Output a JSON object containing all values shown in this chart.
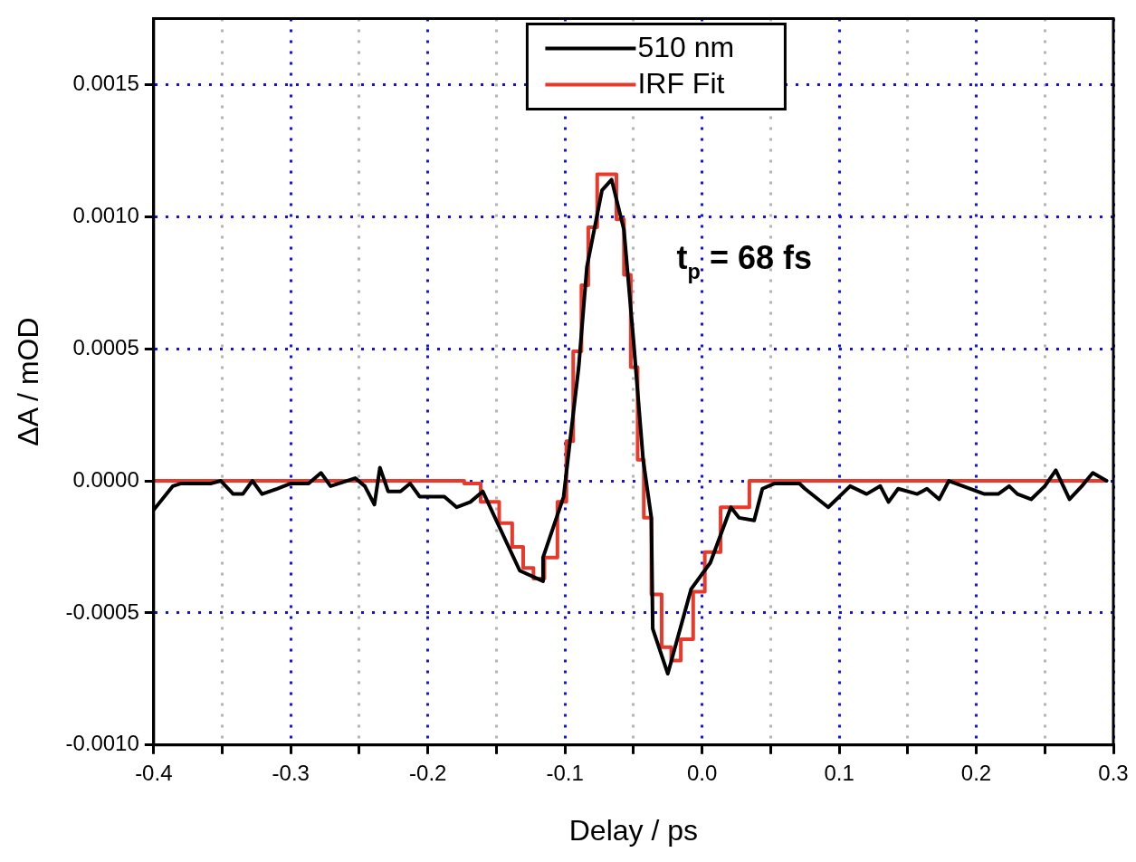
{
  "chart_data": {
    "type": "line",
    "xlabel": "Delay / ps",
    "ylabel": "ΔA / mOD",
    "xlim": [
      -0.4,
      0.3
    ],
    "xticks": [
      -0.4,
      {
        "value": -0.35,
        "label": null
      },
      -0.3,
      {
        "value": -0.25,
        "label": null
      },
      -0.2,
      {
        "value": -0.15,
        "label": null
      },
      -0.1,
      {
        "value": -0.05,
        "label": null
      },
      {
        "value": 0,
        "label": "0.0"
      },
      {
        "value": 0.05,
        "label": null
      },
      0.1,
      {
        "value": 0.15,
        "label": null
      },
      0.2,
      {
        "value": 0.25,
        "label": null
      },
      0.3
    ],
    "ylim": [
      -0.001,
      0.00175
    ],
    "yticks": [
      {
        "value": -0.001,
        "label": "-0.0010"
      },
      {
        "value": -0.0005,
        "label": "-0.0005"
      },
      {
        "value": 0,
        "label": "0.0000"
      },
      {
        "value": 0.0005,
        "label": "0.0005"
      },
      {
        "value": 0.001,
        "label": "0.0010"
      },
      {
        "value": 0.0015,
        "label": "0.0015"
      }
    ],
    "grid": true,
    "legend": "top",
    "marker": "none",
    "line_style": "solid",
    "annotations": [
      "t$_{p}$ = 68 fs"
    ],
    "series": [
      {
        "name": "510 nm",
        "color": "#000000",
        "x": [
          -0.4,
          -0.386,
          -0.38,
          -0.358,
          -0.351,
          -0.342,
          -0.335,
          -0.328,
          -0.321,
          -0.31,
          -0.3,
          -0.287,
          -0.278,
          -0.271,
          -0.253,
          -0.246,
          -0.239,
          -0.235,
          -0.229,
          -0.22,
          -0.213,
          -0.206,
          -0.188,
          -0.179,
          -0.169,
          -0.16,
          -0.133,
          -0.116,
          -0.116,
          -0.101,
          -0.097,
          -0.09,
          -0.084,
          -0.073,
          -0.066,
          -0.057,
          -0.05,
          -0.043,
          -0.037,
          -0.036,
          -0.025,
          -0.008,
          0.006,
          0.021,
          0.027,
          0.038,
          0.044,
          0.053,
          0.071,
          0.075,
          0.092,
          0.108,
          0.12,
          0.13,
          0.136,
          0.143,
          0.157,
          0.164,
          0.173,
          0.18,
          0.206,
          0.216,
          0.224,
          0.23,
          0.24,
          0.25,
          0.258,
          0.268,
          0.277,
          0.285,
          0.295
        ],
        "values": [
          -0.00011,
          -2e-05,
          -1e-05,
          -1e-05,
          0,
          -5e-05,
          -5e-05,
          0,
          -5e-05,
          -3e-05,
          -1e-05,
          -1e-05,
          3e-05,
          -2e-05,
          1e-05,
          -2e-05,
          -9e-05,
          5e-05,
          -4e-05,
          -4e-05,
          -1e-05,
          -6e-05,
          -6e-05,
          -0.0001,
          -8e-05,
          -4e-05,
          -0.00034,
          -0.00038,
          -0.00029,
          -6e-05,
          0.00012,
          0.00043,
          0.00081,
          0.0011,
          0.00114,
          0.00095,
          0.00053,
          8e-05,
          -0.00014,
          -0.00056,
          -0.00073,
          -0.00041,
          -0.00031,
          -0.0001,
          -0.00014,
          -0.00015,
          -3e-05,
          -1e-05,
          -1e-05,
          -3e-05,
          -0.0001,
          -2e-05,
          -5e-05,
          -2e-05,
          -8e-05,
          -3e-05,
          -5e-05,
          -3e-05,
          -7e-05,
          0,
          -5e-05,
          -5e-05,
          -2e-05,
          -5e-05,
          -7e-05,
          -2e-05,
          4e-05,
          -7e-05,
          -2e-05,
          3e-05,
          0
        ]
      },
      {
        "name": "IRF Fit",
        "type": "step",
        "color": "#e8392b",
        "x": [
          -0.4,
          -0.178,
          -0.169,
          -0.154,
          -0.142,
          -0.135,
          -0.126,
          -0.12,
          -0.11,
          -0.101,
          -0.097,
          -0.091,
          -0.085,
          -0.081,
          -0.072,
          -0.066,
          -0.059,
          -0.055,
          -0.049,
          -0.045,
          -0.04,
          -0.034,
          -0.025,
          -0.02,
          -0.011,
          -0.002,
          0.006,
          0.021,
          0.048,
          0.295
        ],
        "values": [
          0,
          0,
          -1e-05,
          -8e-05,
          -0.00016,
          -0.00025,
          -0.00033,
          -0.00037,
          -0.00029,
          -8e-05,
          0.00015,
          0.00049,
          0.00074,
          0.00096,
          0.00116,
          0.00116,
          0.00099,
          0.00078,
          0.00043,
          8e-05,
          -0.00014,
          -0.00043,
          -0.00063,
          -0.00068,
          -0.0006,
          -0.00042,
          -0.00027,
          -0.0001,
          0,
          0
        ]
      }
    ]
  }
}
